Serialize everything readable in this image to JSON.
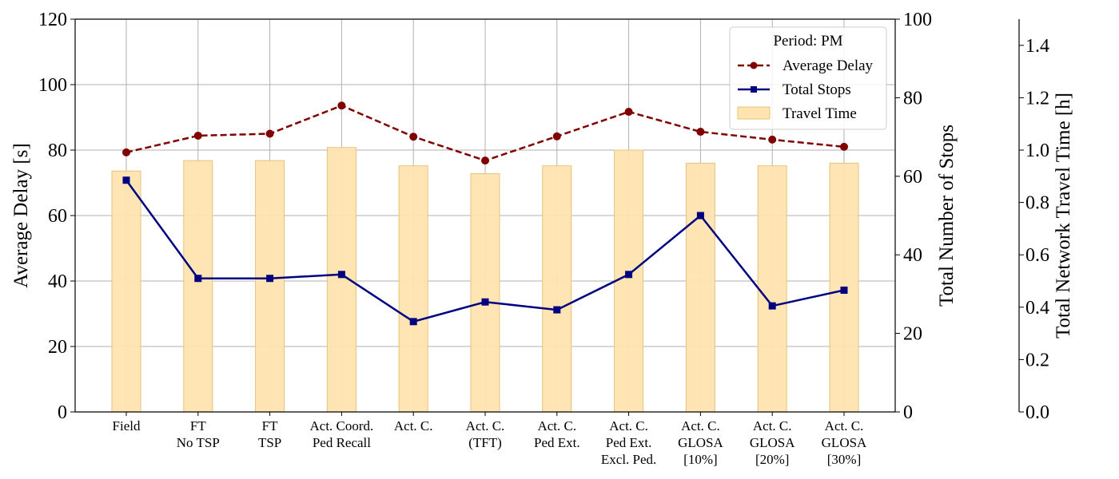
{
  "chart_data": {
    "type": "bar",
    "categories": [
      [
        "Field"
      ],
      [
        "FT",
        "No TSP"
      ],
      [
        "FT",
        "TSP"
      ],
      [
        "Act. Coord.",
        "Ped Recall"
      ],
      [
        "Act. C."
      ],
      [
        "Act. C.",
        "(TFT)"
      ],
      [
        "Act. C.",
        "Ped Ext."
      ],
      [
        "Act. C.",
        "Ped Ext.",
        "Excl. Ped."
      ],
      [
        "Act. C.",
        "GLOSA",
        "[10%]"
      ],
      [
        "Act. C.",
        "GLOSA",
        "[20%]"
      ],
      [
        "Act. C.",
        "GLOSA",
        "[30%]"
      ]
    ],
    "series": [
      {
        "name": "Average Delay",
        "type": "line",
        "axis": "left",
        "color": "#800000",
        "dash": true,
        "marker": "circle",
        "values": [
          79.3,
          84.4,
          85.0,
          93.6,
          84.1,
          76.8,
          84.2,
          91.7,
          85.6,
          83.2,
          81.0
        ]
      },
      {
        "name": "Total Stops",
        "type": "line",
        "axis": "right",
        "color": "#000080",
        "dash": false,
        "marker": "square",
        "values": [
          59,
          34,
          34,
          35,
          23,
          28,
          26,
          35,
          50,
          27,
          31
        ]
      },
      {
        "name": "Travel Time",
        "type": "bar",
        "axis": "far_right",
        "color": "#ffe4b0",
        "edge": "#e8c27c",
        "values": [
          0.92,
          0.96,
          0.96,
          1.01,
          0.94,
          0.91,
          0.94,
          1.0,
          0.95,
          0.94,
          0.95
        ]
      }
    ],
    "legend": {
      "title": "Period: PM",
      "position": "top-right"
    },
    "axes": {
      "left": {
        "label": "Average Delay [s]",
        "ylim": [
          0,
          120
        ],
        "ticks": [
          0,
          20,
          40,
          60,
          80,
          100,
          120
        ]
      },
      "right": {
        "label": "Total Number of Stops",
        "ylim": [
          0,
          100
        ],
        "ticks": [
          0,
          20,
          40,
          60,
          80,
          100
        ]
      },
      "far_right": {
        "label": "Total Network Travel Time [h]",
        "ylim": [
          0,
          1.5
        ],
        "ticks": [
          "0.0",
          "0.2",
          "0.4",
          "0.6",
          "0.8",
          "1.0",
          "1.2",
          "1.4"
        ]
      }
    },
    "grid": true
  }
}
